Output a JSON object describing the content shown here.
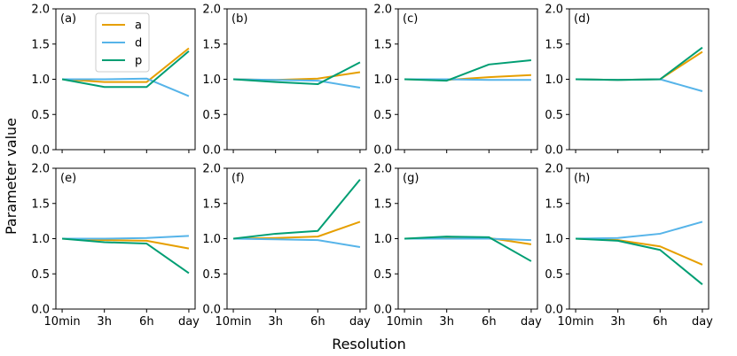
{
  "chart_data": {
    "type": "line",
    "xlabel": "Resolution",
    "ylabel": "Parameter value",
    "categories": [
      "10min",
      "3h",
      "6h",
      "day"
    ],
    "ylim": [
      0,
      2
    ],
    "yticks": [
      "0.0",
      "0.5",
      "1.0",
      "1.5",
      "2.0"
    ],
    "legend": {
      "location": "top-left panel, upper-center",
      "entries": [
        {
          "name": "a",
          "color": "#E69F00"
        },
        {
          "name": "d",
          "color": "#56B4E9"
        },
        {
          "name": "p",
          "color": "#009E73"
        }
      ]
    },
    "panels": [
      {
        "label": "(a)",
        "series": [
          {
            "name": "a",
            "values": [
              1.0,
              0.96,
              0.96,
              1.44
            ]
          },
          {
            "name": "d",
            "values": [
              1.0,
              1.0,
              1.01,
              0.76
            ]
          },
          {
            "name": "p",
            "values": [
              1.0,
              0.89,
              0.89,
              1.4
            ]
          }
        ]
      },
      {
        "label": "(b)",
        "series": [
          {
            "name": "a",
            "values": [
              1.0,
              0.99,
              1.01,
              1.1
            ]
          },
          {
            "name": "d",
            "values": [
              1.0,
              0.99,
              0.98,
              0.88
            ]
          },
          {
            "name": "p",
            "values": [
              1.0,
              0.96,
              0.93,
              1.24
            ]
          }
        ]
      },
      {
        "label": "(c)",
        "series": [
          {
            "name": "a",
            "values": [
              1.0,
              0.99,
              1.03,
              1.06
            ]
          },
          {
            "name": "d",
            "values": [
              1.0,
              1.0,
              0.99,
              0.99
            ]
          },
          {
            "name": "p",
            "values": [
              1.0,
              0.98,
              1.21,
              1.27
            ]
          }
        ]
      },
      {
        "label": "(d)",
        "series": [
          {
            "name": "a",
            "values": [
              1.0,
              0.99,
              1.0,
              1.39
            ]
          },
          {
            "name": "d",
            "values": [
              1.0,
              0.99,
              1.0,
              0.83
            ]
          },
          {
            "name": "p",
            "values": [
              1.0,
              0.99,
              1.0,
              1.45
            ]
          }
        ]
      },
      {
        "label": "(e)",
        "series": [
          {
            "name": "a",
            "values": [
              1.0,
              0.98,
              0.97,
              0.86
            ]
          },
          {
            "name": "d",
            "values": [
              1.0,
              1.0,
              1.01,
              1.04
            ]
          },
          {
            "name": "p",
            "values": [
              1.0,
              0.95,
              0.93,
              0.51
            ]
          }
        ]
      },
      {
        "label": "(f)",
        "series": [
          {
            "name": "a",
            "values": [
              1.0,
              1.01,
              1.03,
              1.24
            ]
          },
          {
            "name": "d",
            "values": [
              1.0,
              0.99,
              0.98,
              0.88
            ]
          },
          {
            "name": "p",
            "values": [
              1.0,
              1.07,
              1.11,
              1.84
            ]
          }
        ]
      },
      {
        "label": "(g)",
        "series": [
          {
            "name": "a",
            "values": [
              1.0,
              1.01,
              1.01,
              0.92
            ]
          },
          {
            "name": "d",
            "values": [
              1.0,
              1.0,
              1.0,
              0.98
            ]
          },
          {
            "name": "p",
            "values": [
              1.0,
              1.03,
              1.02,
              0.68
            ]
          }
        ]
      },
      {
        "label": "(h)",
        "series": [
          {
            "name": "a",
            "values": [
              1.0,
              0.98,
              0.89,
              0.63
            ]
          },
          {
            "name": "d",
            "values": [
              1.0,
              1.01,
              1.07,
              1.24
            ]
          },
          {
            "name": "p",
            "values": [
              1.0,
              0.97,
              0.84,
              0.35
            ]
          }
        ]
      }
    ]
  }
}
